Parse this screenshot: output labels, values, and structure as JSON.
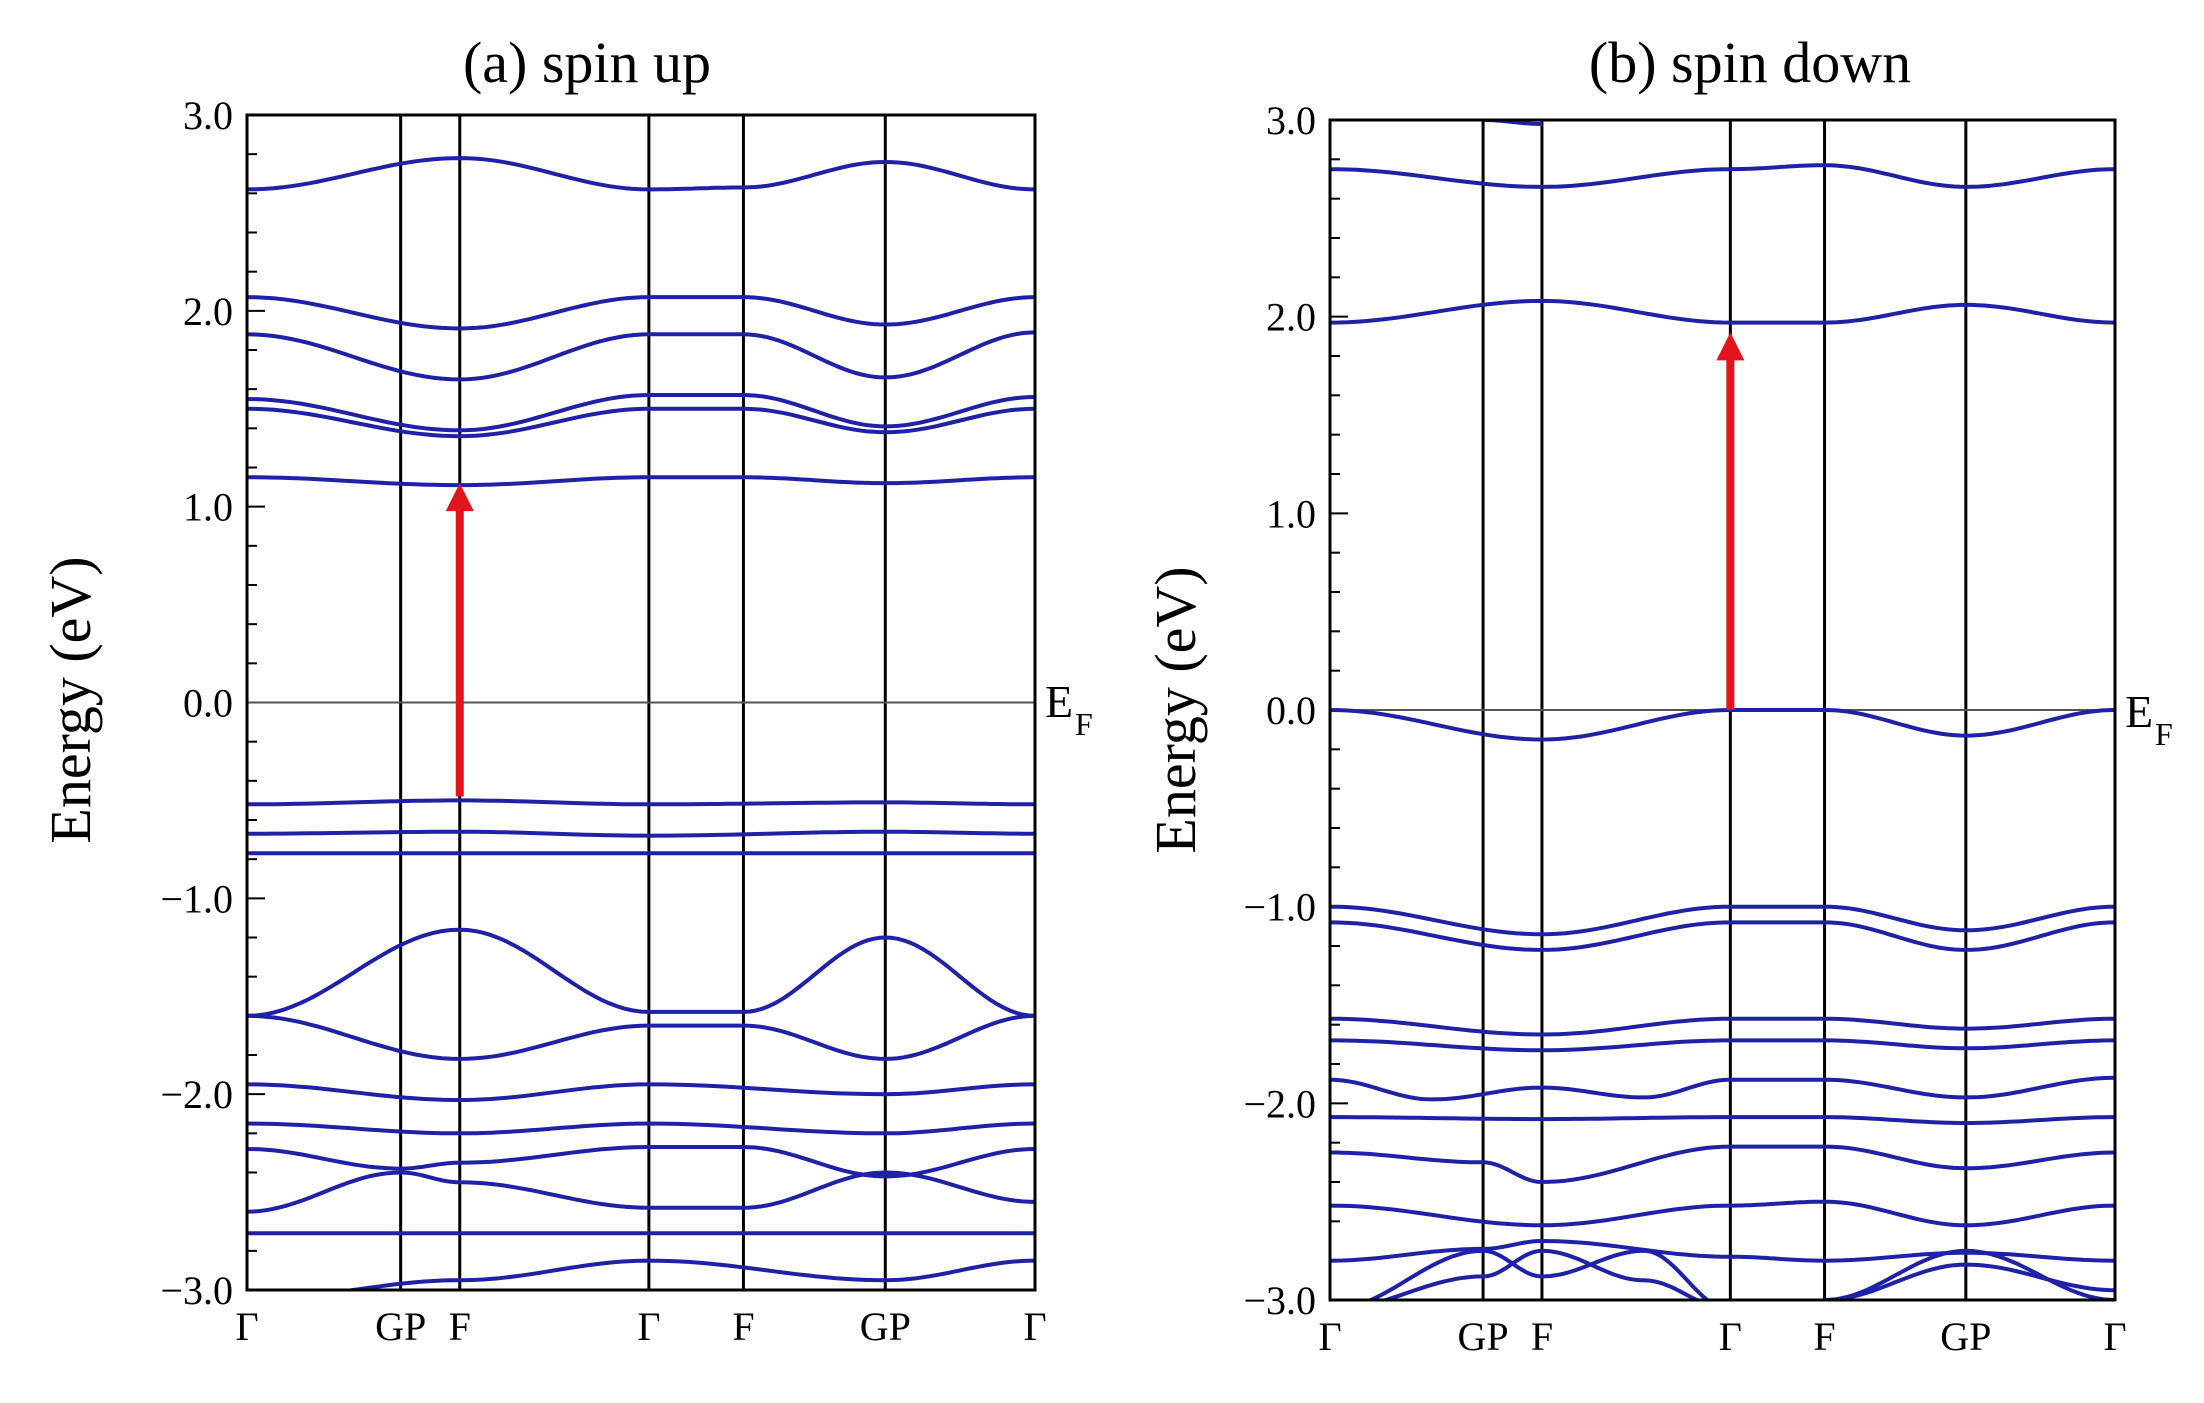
{
  "chart_data": [
    {
      "type": "line",
      "title": "(a) spin up",
      "ylabel": "Energy (eV)",
      "xlabel": "",
      "ylim": [
        -3.0,
        3.0
      ],
      "yticks": [
        3.0,
        2.0,
        1.0,
        0.0,
        -1.0,
        -2.0,
        -3.0
      ],
      "ytick_labels": [
        "3.0",
        "2.0",
        "1.0",
        "0.0",
        "−1.0",
        "−2.0",
        "−3.0"
      ],
      "kpath_labels": [
        "Γ",
        "GP",
        "F",
        "Γ",
        "F",
        "GP",
        "Γ"
      ],
      "kpath_positions": [
        0.0,
        0.195,
        0.27,
        0.51,
        0.63,
        0.81,
        1.0
      ],
      "fermi_label": "E",
      "fermi_subscript": "F",
      "fermi_level": 0.0,
      "arrow": {
        "x": 0.27,
        "from": -0.48,
        "to": 1.1,
        "color": "#e3141c"
      },
      "band_color": "#1f22a6",
      "series": [
        {
          "name": "b1",
          "x": [
            0,
            0.27,
            0.51,
            0.81,
            1
          ],
          "y": [
            -3.05,
            -2.95,
            -2.85,
            -2.95,
            -2.85
          ]
        },
        {
          "name": "b2",
          "x": [
            0,
            1
          ],
          "y": [
            -2.71,
            -2.71
          ]
        },
        {
          "name": "b3",
          "x": [
            0,
            0.195,
            0.27,
            0.51,
            0.63,
            0.81,
            1
          ],
          "y": [
            -2.6,
            -2.4,
            -2.45,
            -2.58,
            -2.58,
            -2.4,
            -2.55
          ]
        },
        {
          "name": "b4",
          "x": [
            0,
            0.195,
            0.27,
            0.51,
            0.63,
            0.81,
            1
          ],
          "y": [
            -2.28,
            -2.38,
            -2.35,
            -2.27,
            -2.27,
            -2.42,
            -2.28
          ]
        },
        {
          "name": "b5",
          "x": [
            0,
            0.27,
            0.51,
            0.81,
            1
          ],
          "y": [
            -2.15,
            -2.2,
            -2.15,
            -2.2,
            -2.15
          ]
        },
        {
          "name": "b6",
          "x": [
            0,
            0.27,
            0.51,
            0.81,
            1
          ],
          "y": [
            -1.95,
            -2.03,
            -1.95,
            -2.0,
            -1.95
          ]
        },
        {
          "name": "b7",
          "x": [
            0,
            0.27,
            0.51,
            0.63,
            0.81,
            1
          ],
          "y": [
            -1.6,
            -1.82,
            -1.65,
            -1.65,
            -1.82,
            -1.6
          ]
        },
        {
          "name": "b8",
          "x": [
            0,
            0.27,
            0.51,
            0.63,
            0.81,
            1
          ],
          "y": [
            -1.6,
            -1.16,
            -1.58,
            -1.58,
            -1.2,
            -1.6
          ]
        },
        {
          "name": "b9",
          "x": [
            0,
            1
          ],
          "y": [
            -0.77,
            -0.77
          ]
        },
        {
          "name": "b10",
          "x": [
            0,
            0.27,
            0.51,
            0.81,
            1
          ],
          "y": [
            -0.67,
            -0.66,
            -0.68,
            -0.66,
            -0.67
          ]
        },
        {
          "name": "b11",
          "x": [
            0,
            0.27,
            0.51,
            0.81,
            1
          ],
          "y": [
            -0.52,
            -0.5,
            -0.52,
            -0.51,
            -0.52
          ]
        },
        {
          "name": "b12",
          "x": [
            0,
            0.27,
            0.51,
            0.63,
            0.81,
            1
          ],
          "y": [
            1.15,
            1.11,
            1.15,
            1.15,
            1.12,
            1.15
          ]
        },
        {
          "name": "b13",
          "x": [
            0,
            0.27,
            0.51,
            0.63,
            0.81,
            1
          ],
          "y": [
            1.5,
            1.36,
            1.5,
            1.5,
            1.38,
            1.5
          ]
        },
        {
          "name": "b14",
          "x": [
            0,
            0.27,
            0.51,
            0.63,
            0.81,
            1
          ],
          "y": [
            1.55,
            1.39,
            1.57,
            1.57,
            1.41,
            1.56
          ]
        },
        {
          "name": "b15",
          "x": [
            0,
            0.27,
            0.51,
            0.63,
            0.81,
            1
          ],
          "y": [
            1.88,
            1.65,
            1.88,
            1.88,
            1.66,
            1.89
          ]
        },
        {
          "name": "b16",
          "x": [
            0,
            0.27,
            0.51,
            0.63,
            0.81,
            1
          ],
          "y": [
            2.07,
            1.91,
            2.07,
            2.07,
            1.93,
            2.07
          ]
        },
        {
          "name": "b17",
          "x": [
            0,
            0.27,
            0.51,
            0.63,
            0.81,
            1
          ],
          "y": [
            2.62,
            2.78,
            2.62,
            2.63,
            2.76,
            2.62
          ]
        }
      ]
    },
    {
      "type": "line",
      "title": "(b) spin down",
      "ylabel": "Energy (eV)",
      "xlabel": "",
      "ylim": [
        -3.0,
        3.0
      ],
      "yticks": [
        3.0,
        2.0,
        1.0,
        0.0,
        -1.0,
        -2.0,
        -3.0
      ],
      "ytick_labels": [
        "3.0",
        "2.0",
        "1.0",
        "0.0",
        "−1.0",
        "−2.0",
        "−3.0"
      ],
      "kpath_labels": [
        "Γ",
        "GP",
        "F",
        "Γ",
        "F",
        "GP",
        "Γ"
      ],
      "kpath_positions": [
        0.0,
        0.195,
        0.27,
        0.51,
        0.63,
        0.81,
        1.0
      ],
      "fermi_label": "E",
      "fermi_subscript": "F",
      "fermi_level": 0.0,
      "arrow": {
        "x": 0.51,
        "from": 0.0,
        "to": 1.9,
        "color": "#e3141c"
      },
      "band_color": "#1f22a6",
      "series": [
        {
          "name": "b1",
          "x": [
            0,
            0.195,
            0.27,
            0.4,
            0.51
          ],
          "y": [
            -3.05,
            -2.88,
            -2.75,
            -2.9,
            -3.05
          ]
        },
        {
          "name": "b2",
          "x": [
            0,
            0.195,
            0.27,
            0.4,
            0.51
          ],
          "y": [
            -3.05,
            -2.75,
            -2.88,
            -2.75,
            -3.05
          ]
        },
        {
          "name": "b3",
          "x": [
            0.63,
            0.81,
            1
          ],
          "y": [
            -3.0,
            -2.75,
            -3.0
          ]
        },
        {
          "name": "b4",
          "x": [
            0.63,
            0.81,
            1
          ],
          "y": [
            -3.0,
            -2.82,
            -2.95
          ]
        },
        {
          "name": "b5",
          "x": [
            0,
            0.195,
            0.27,
            0.51,
            0.63,
            0.81,
            1
          ],
          "y": [
            -2.8,
            -2.74,
            -2.7,
            -2.78,
            -2.8,
            -2.76,
            -2.8
          ]
        },
        {
          "name": "b6",
          "x": [
            0,
            0.27,
            0.51,
            0.63,
            0.81,
            1
          ],
          "y": [
            -2.52,
            -2.62,
            -2.52,
            -2.5,
            -2.62,
            -2.52
          ]
        },
        {
          "name": "b7",
          "x": [
            0,
            0.195,
            0.27,
            0.51,
            0.63,
            0.81,
            1
          ],
          "y": [
            -2.25,
            -2.3,
            -2.4,
            -2.22,
            -2.22,
            -2.33,
            -2.25
          ]
        },
        {
          "name": "b8",
          "x": [
            0,
            0.27,
            0.51,
            0.63,
            0.81,
            1
          ],
          "y": [
            -2.07,
            -2.08,
            -2.07,
            -2.07,
            -2.1,
            -2.07
          ]
        },
        {
          "name": "b9",
          "x": [
            0,
            0.13,
            0.27,
            0.4,
            0.51,
            0.63,
            0.81,
            1
          ],
          "y": [
            -1.88,
            -1.98,
            -1.92,
            -1.97,
            -1.88,
            -1.88,
            -1.97,
            -1.87
          ]
        },
        {
          "name": "b10",
          "x": [
            0,
            0.27,
            0.51,
            0.63,
            0.81,
            1
          ],
          "y": [
            -1.68,
            -1.73,
            -1.68,
            -1.68,
            -1.72,
            -1.68
          ]
        },
        {
          "name": "b11",
          "x": [
            0,
            0.27,
            0.51,
            0.63,
            0.81,
            1
          ],
          "y": [
            -1.57,
            -1.65,
            -1.57,
            -1.57,
            -1.62,
            -1.57
          ]
        },
        {
          "name": "b12",
          "x": [
            0,
            0.27,
            0.51,
            0.63,
            0.81,
            1
          ],
          "y": [
            -1.08,
            -1.22,
            -1.08,
            -1.08,
            -1.22,
            -1.08
          ]
        },
        {
          "name": "b13",
          "x": [
            0,
            0.27,
            0.51,
            0.63,
            0.81,
            1
          ],
          "y": [
            -1.0,
            -1.14,
            -1.0,
            -1.0,
            -1.12,
            -1.0
          ]
        },
        {
          "name": "b14",
          "x": [
            0,
            0.27,
            0.51,
            0.63,
            0.81,
            1
          ],
          "y": [
            0.0,
            -0.15,
            0.0,
            0.0,
            -0.13,
            0.0
          ]
        },
        {
          "name": "b15",
          "x": [
            0,
            0.27,
            0.51,
            0.63,
            0.81,
            1
          ],
          "y": [
            1.97,
            2.08,
            1.97,
            1.97,
            2.06,
            1.97
          ]
        },
        {
          "name": "b16",
          "x": [
            0,
            0.27,
            0.51,
            0.63,
            0.81,
            1
          ],
          "y": [
            2.75,
            2.66,
            2.75,
            2.77,
            2.66,
            2.75
          ]
        },
        {
          "name": "b17",
          "x": [
            0.195,
            0.27
          ],
          "y": [
            3.0,
            2.98
          ]
        }
      ]
    }
  ]
}
